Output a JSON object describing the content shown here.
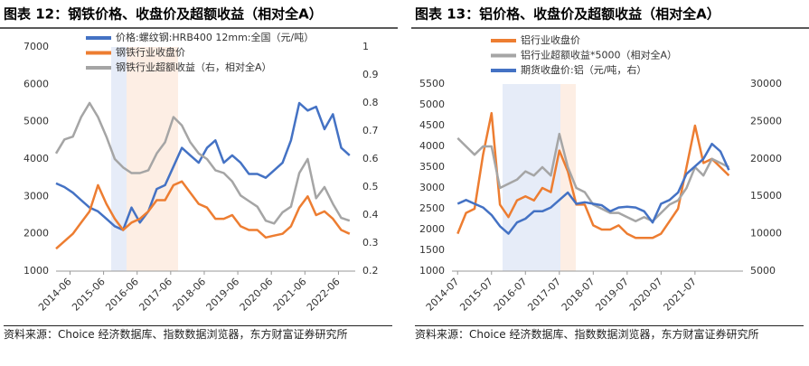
{
  "chart_data": [
    {
      "type": "line",
      "title": "图表 12：钢铁价格、收盘价及超额收益（相对全A）",
      "source": "资料来源：Choice 经济数据库、指数数据浏览器，东方财富证券研究所",
      "x": [
        "2014-01",
        "2014-04",
        "2014-07",
        "2014-10",
        "2015-01",
        "2015-04",
        "2015-07",
        "2015-10",
        "2016-01",
        "2016-04",
        "2016-07",
        "2016-10",
        "2017-01",
        "2017-04",
        "2017-07",
        "2017-10",
        "2018-01",
        "2018-04",
        "2018-07",
        "2018-10",
        "2019-01",
        "2019-04",
        "2019-07",
        "2019-10",
        "2020-01",
        "2020-04",
        "2020-07",
        "2020-10",
        "2021-01",
        "2021-04",
        "2021-07",
        "2021-10",
        "2022-01",
        "2022-04",
        "2022-07",
        "2022-10"
      ],
      "series": [
        {
          "name": "价格:螺纹钢:HRB400 12mm:全国（元/吨）",
          "color": "#4472c4",
          "values": [
            3350,
            3250,
            3100,
            2900,
            2700,
            2600,
            2400,
            2200,
            2100,
            2700,
            2300,
            2600,
            3200,
            3300,
            3800,
            4300,
            4100,
            3900,
            4300,
            4500,
            3900,
            4100,
            3900,
            3600,
            3600,
            3500,
            3700,
            3900,
            4500,
            5500,
            5300,
            5400,
            4800,
            5200,
            4300,
            4100
          ]
        },
        {
          "name": "钢铁行业收盘价",
          "color": "#ed7d31",
          "values": [
            1600,
            1800,
            2000,
            2300,
            2600,
            3300,
            2800,
            2400,
            2100,
            2300,
            2400,
            2600,
            2900,
            2900,
            3300,
            3400,
            3100,
            2800,
            2700,
            2400,
            2400,
            2500,
            2200,
            2100,
            2100,
            1900,
            1950,
            2000,
            2200,
            2700,
            3000,
            2500,
            2600,
            2400,
            2100,
            2000
          ]
        },
        {
          "name": "钢铁行业超额收益（右，相对全A）",
          "color": "#a5a5a5",
          "axis": "y2",
          "values": [
            0.62,
            0.67,
            0.68,
            0.75,
            0.8,
            0.75,
            0.68,
            0.6,
            0.57,
            0.55,
            0.55,
            0.56,
            0.62,
            0.66,
            0.75,
            0.72,
            0.66,
            0.62,
            0.6,
            0.56,
            0.55,
            0.52,
            0.47,
            0.45,
            0.43,
            0.38,
            0.37,
            0.41,
            0.43,
            0.55,
            0.6,
            0.46,
            0.5,
            0.44,
            0.39,
            0.38
          ]
        }
      ],
      "xlim": [
        "2014-01",
        "2022-12"
      ],
      "xticks": [
        "2014-06",
        "2015-06",
        "2016-06",
        "2017-06",
        "2018-06",
        "2019-06",
        "2020-06",
        "2021-06",
        "2022-06"
      ],
      "ylim": [
        1000,
        7000
      ],
      "yticks": [
        1000,
        2000,
        3000,
        4000,
        5000,
        6000,
        7000
      ],
      "y2lim": [
        0.2,
        1.0
      ],
      "y2ticks": [
        0.2,
        0.3,
        0.4,
        0.5,
        0.6,
        0.7,
        0.8,
        0.9,
        1.0
      ],
      "grid": false
    },
    {
      "type": "line",
      "title": "图表 13：铝价格、收盘价及超额收益（相对全A）",
      "source": "资料来源：Choice 经济数据库、指数数据浏览器，东方财富证券研究所",
      "x": [
        "2014-07",
        "2014-10",
        "2015-01",
        "2015-04",
        "2015-07",
        "2015-10",
        "2016-01",
        "2016-04",
        "2016-07",
        "2016-10",
        "2017-01",
        "2017-04",
        "2017-07",
        "2017-10",
        "2018-01",
        "2018-04",
        "2018-07",
        "2018-10",
        "2019-01",
        "2019-04",
        "2019-07",
        "2019-10",
        "2020-01",
        "2020-04",
        "2020-07",
        "2020-10",
        "2021-01",
        "2021-04",
        "2021-07",
        "2021-10",
        "2022-01",
        "2022-04",
        "2022-07"
      ],
      "series": [
        {
          "name": "铝行业收盘价",
          "color": "#ed7d31",
          "values": [
            1900,
            2400,
            2500,
            3800,
            4800,
            2600,
            2300,
            2700,
            2800,
            2700,
            3000,
            2900,
            3900,
            3400,
            2600,
            2600,
            2100,
            2000,
            2000,
            2100,
            1900,
            1800,
            1800,
            1800,
            1900,
            2200,
            2500,
            3500,
            4500,
            3600,
            3700,
            3500,
            3300
          ]
        },
        {
          "name": "铝行业超额收益*5000（相对全A）",
          "color": "#a5a5a5",
          "values": [
            4200,
            4000,
            3800,
            4000,
            4000,
            3000,
            3100,
            3200,
            3400,
            3300,
            3500,
            3300,
            4300,
            3500,
            3000,
            2900,
            2600,
            2500,
            2400,
            2400,
            2300,
            2200,
            2300,
            2200,
            2400,
            2600,
            2700,
            3000,
            3500,
            3300,
            3700,
            3600,
            3500
          ]
        },
        {
          "name": "期货收盘价:铝（元/吨，右）",
          "color": "#4472c4",
          "axis": "y2",
          "values": [
            14000,
            14500,
            14000,
            13500,
            12500,
            11000,
            10000,
            11500,
            12000,
            13000,
            13000,
            13500,
            14500,
            15500,
            14000,
            14200,
            14000,
            13800,
            13000,
            13500,
            13600,
            13500,
            13000,
            11500,
            14000,
            14500,
            15500,
            18000,
            19000,
            20000,
            22000,
            21000,
            18500
          ]
        }
      ],
      "xlim": [
        "2014-05",
        "2022-12"
      ],
      "xticks": [
        "2014-07",
        "2015-07",
        "2016-07",
        "2017-07",
        "2018-07",
        "2019-07",
        "2020-07",
        "2021-07"
      ],
      "ylim": [
        1000,
        5500
      ],
      "yticks": [
        1000,
        1500,
        2000,
        2500,
        3000,
        3500,
        4000,
        4500,
        5000,
        5500
      ],
      "y2lim": [
        5000,
        30000
      ],
      "y2ticks": [
        5000,
        10000,
        15000,
        20000,
        25000,
        30000
      ],
      "grid": false
    }
  ]
}
